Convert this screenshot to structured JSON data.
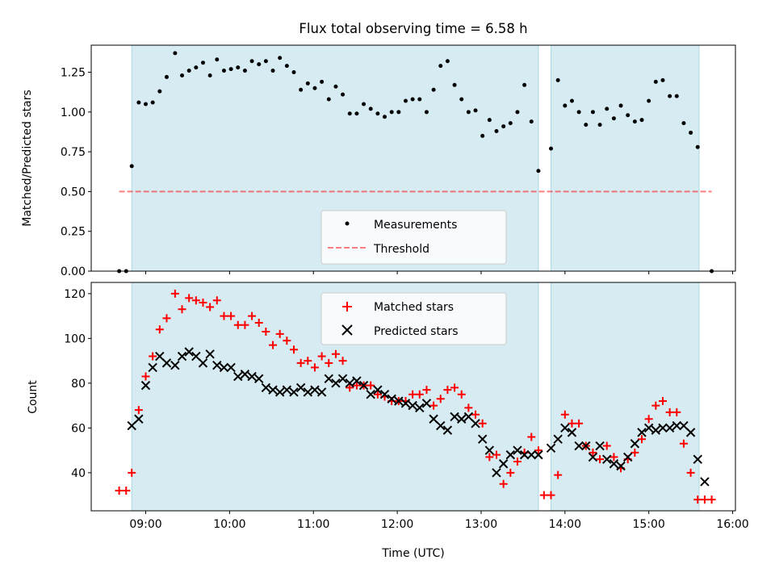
{
  "figure": {
    "title": "Flux total observing time = 6.58 h",
    "xlabel": "Time (UTC)",
    "xticks": [
      "09:00",
      "10:00",
      "11:00",
      "12:00",
      "13:00",
      "14:00",
      "15:00",
      "16:00"
    ]
  },
  "colors": {
    "shade": "#add8e6",
    "measurement": "#000000",
    "threshold": "#ff0000",
    "matched": "#ff0000",
    "predicted": "#000000"
  },
  "chart_data": [
    {
      "type": "scatter",
      "panel": "top",
      "ylabel": "Matched/Predicted stars",
      "ylim": [
        0,
        1.42
      ],
      "xlim": [
        "08:21",
        "16:02"
      ],
      "yticks": [
        "0.00",
        "0.25",
        "0.50",
        "0.75",
        "1.00",
        "1.25"
      ],
      "grid": false,
      "legend_position": "lower-center",
      "shaded_intervals": [
        [
          "08:50",
          "13:41"
        ],
        [
          "13:50",
          "15:36"
        ]
      ],
      "threshold": {
        "name": "Threshold",
        "y": 0.5,
        "x_range": [
          "08:41",
          "15:45"
        ],
        "style": "dashed"
      },
      "series": [
        {
          "name": "Measurements",
          "marker": "dot",
          "x": [
            "08:41",
            "08:46",
            "08:50",
            "08:55",
            "09:00",
            "09:05",
            "09:10",
            "09:15",
            "09:21",
            "09:26",
            "09:31",
            "09:36",
            "09:41",
            "09:46",
            "09:51",
            "09:56",
            "10:01",
            "10:06",
            "10:11",
            "10:16",
            "10:21",
            "10:26",
            "10:31",
            "10:36",
            "10:41",
            "10:46",
            "10:51",
            "10:56",
            "11:01",
            "11:06",
            "11:11",
            "11:16",
            "11:21",
            "11:26",
            "11:31",
            "11:36",
            "11:41",
            "11:46",
            "11:51",
            "11:56",
            "12:01",
            "12:06",
            "12:11",
            "12:16",
            "12:21",
            "12:26",
            "12:31",
            "12:36",
            "12:41",
            "12:46",
            "12:51",
            "12:56",
            "13:01",
            "13:06",
            "13:11",
            "13:16",
            "13:21",
            "13:26",
            "13:31",
            "13:36",
            "13:41",
            "13:50",
            "13:55",
            "14:00",
            "14:05",
            "14:10",
            "14:15",
            "14:20",
            "14:25",
            "14:30",
            "14:35",
            "14:40",
            "14:45",
            "14:50",
            "14:55",
            "15:00",
            "15:05",
            "15:10",
            "15:15",
            "15:20",
            "15:25",
            "15:30",
            "15:35",
            "15:45"
          ],
          "y": [
            0.0,
            0.0,
            0.66,
            1.06,
            1.05,
            1.06,
            1.13,
            1.22,
            1.37,
            1.23,
            1.26,
            1.28,
            1.31,
            1.23,
            1.33,
            1.26,
            1.27,
            1.28,
            1.26,
            1.32,
            1.3,
            1.32,
            1.26,
            1.34,
            1.29,
            1.25,
            1.14,
            1.18,
            1.15,
            1.19,
            1.08,
            1.16,
            1.11,
            0.99,
            0.99,
            1.05,
            1.02,
            0.99,
            0.97,
            1.0,
            1.0,
            1.07,
            1.08,
            1.08,
            1.0,
            1.14,
            1.29,
            1.32,
            1.17,
            1.08,
            1.0,
            1.01,
            0.85,
            0.95,
            0.88,
            0.91,
            0.93,
            1.0,
            1.17,
            0.94,
            0.63,
            0.77,
            1.2,
            1.04,
            1.07,
            1.0,
            0.92,
            1.0,
            0.92,
            1.02,
            0.96,
            1.04,
            0.98,
            0.94,
            0.95,
            1.07,
            1.19,
            1.2,
            1.1,
            1.1,
            0.93,
            0.87,
            0.78,
            0.0
          ]
        }
      ]
    },
    {
      "type": "scatter",
      "panel": "bottom",
      "ylabel": "Count",
      "ylim": [
        23,
        125
      ],
      "xlim": [
        "08:21",
        "16:02"
      ],
      "yticks": [
        "40",
        "60",
        "80",
        "100",
        "120"
      ],
      "grid": false,
      "legend_position": "top-center",
      "shaded_intervals": [
        [
          "08:50",
          "13:41"
        ],
        [
          "13:50",
          "15:36"
        ]
      ],
      "series": [
        {
          "name": "Matched stars",
          "marker": "plus",
          "x": [
            "08:41",
            "08:46",
            "08:50",
            "08:55",
            "09:00",
            "09:05",
            "09:10",
            "09:15",
            "09:21",
            "09:26",
            "09:31",
            "09:36",
            "09:41",
            "09:46",
            "09:51",
            "09:56",
            "10:01",
            "10:06",
            "10:11",
            "10:16",
            "10:21",
            "10:26",
            "10:31",
            "10:36",
            "10:41",
            "10:46",
            "10:51",
            "10:56",
            "11:01",
            "11:06",
            "11:11",
            "11:16",
            "11:21",
            "11:26",
            "11:31",
            "11:36",
            "11:41",
            "11:46",
            "11:51",
            "11:56",
            "12:01",
            "12:06",
            "12:11",
            "12:16",
            "12:21",
            "12:26",
            "12:31",
            "12:36",
            "12:41",
            "12:46",
            "12:51",
            "12:56",
            "13:01",
            "13:06",
            "13:11",
            "13:16",
            "13:21",
            "13:26",
            "13:31",
            "13:36",
            "13:41",
            "13:45",
            "13:50",
            "13:55",
            "14:00",
            "14:05",
            "14:10",
            "14:15",
            "14:20",
            "14:25",
            "14:30",
            "14:35",
            "14:40",
            "14:45",
            "14:50",
            "14:55",
            "15:00",
            "15:05",
            "15:10",
            "15:15",
            "15:20",
            "15:25",
            "15:30",
            "15:35",
            "15:40",
            "15:45"
          ],
          "y": [
            32,
            32,
            40,
            68,
            83,
            92,
            104,
            109,
            120,
            113,
            118,
            117,
            116,
            114,
            117,
            110,
            110,
            106,
            106,
            110,
            107,
            103,
            97,
            102,
            99,
            95,
            89,
            90,
            87,
            92,
            89,
            93,
            90,
            78,
            79,
            79,
            79,
            75,
            74,
            72,
            72,
            72,
            75,
            75,
            77,
            70,
            73,
            77,
            78,
            75,
            69,
            66,
            62,
            47,
            48,
            35,
            40,
            45,
            49,
            56,
            50,
            30,
            30,
            39,
            66,
            62,
            62,
            52,
            49,
            46,
            52,
            47,
            42,
            46,
            49,
            55,
            64,
            70,
            72,
            67,
            67,
            53,
            40,
            28,
            28,
            28
          ]
        },
        {
          "name": "Predicted stars",
          "marker": "x",
          "x": [
            "08:50",
            "08:55",
            "09:00",
            "09:05",
            "09:10",
            "09:15",
            "09:21",
            "09:26",
            "09:31",
            "09:36",
            "09:41",
            "09:46",
            "09:51",
            "09:56",
            "10:01",
            "10:06",
            "10:11",
            "10:16",
            "10:21",
            "10:26",
            "10:31",
            "10:36",
            "10:41",
            "10:46",
            "10:51",
            "10:56",
            "11:01",
            "11:06",
            "11:11",
            "11:16",
            "11:21",
            "11:26",
            "11:31",
            "11:36",
            "11:41",
            "11:46",
            "11:51",
            "11:56",
            "12:01",
            "12:06",
            "12:11",
            "12:16",
            "12:21",
            "12:26",
            "12:31",
            "12:36",
            "12:41",
            "12:46",
            "12:51",
            "12:56",
            "13:01",
            "13:06",
            "13:11",
            "13:16",
            "13:21",
            "13:26",
            "13:31",
            "13:36",
            "13:41",
            "13:50",
            "13:55",
            "14:00",
            "14:05",
            "14:10",
            "14:15",
            "14:20",
            "14:25",
            "14:30",
            "14:35",
            "14:40",
            "14:45",
            "14:50",
            "14:55",
            "15:00",
            "15:05",
            "15:10",
            "15:15",
            "15:20",
            "15:25",
            "15:30",
            "15:35",
            "15:40"
          ],
          "y": [
            61,
            64,
            79,
            87,
            92,
            89,
            88,
            92,
            94,
            92,
            89,
            93,
            88,
            87,
            87,
            83,
            84,
            83,
            82,
            78,
            77,
            76,
            77,
            76,
            78,
            76,
            77,
            76,
            82,
            80,
            82,
            80,
            81,
            79,
            75,
            77,
            75,
            73,
            72,
            71,
            70,
            69,
            71,
            64,
            61,
            59,
            65,
            64,
            65,
            62,
            55,
            50,
            40,
            44,
            48,
            50,
            48,
            48,
            48,
            51,
            55,
            60,
            58,
            52,
            52,
            47,
            52,
            46,
            44,
            43,
            47,
            53,
            58,
            60,
            59,
            60,
            60,
            61,
            61,
            58,
            46,
            36
          ]
        }
      ]
    }
  ]
}
